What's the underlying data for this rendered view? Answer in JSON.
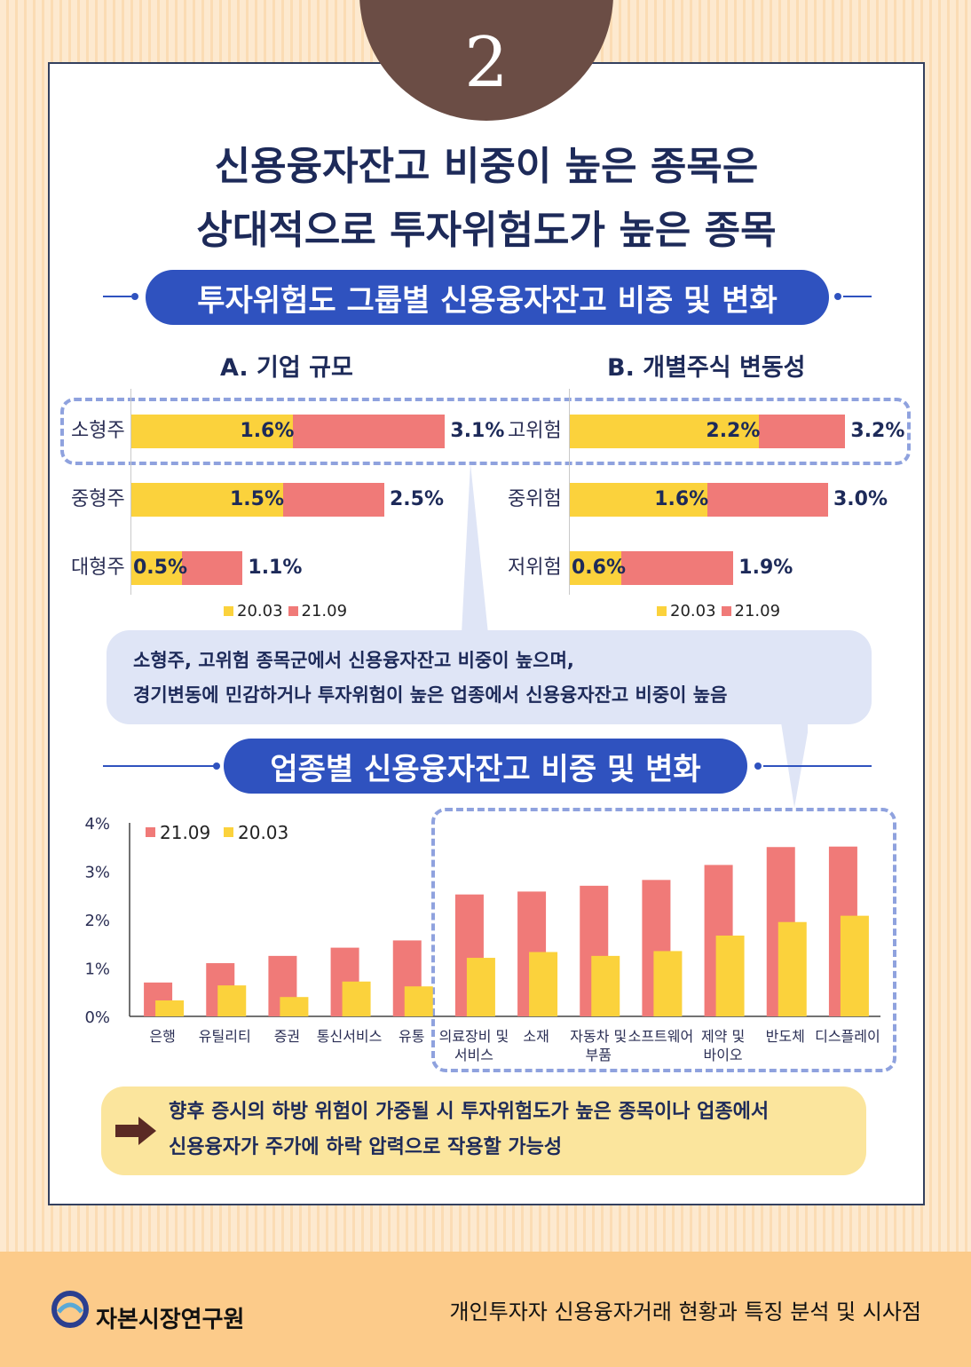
{
  "badge": {
    "number": "2"
  },
  "title": {
    "line1": "신용융자잔고 비중이 높은 종목은",
    "line2": "상대적으로 투자위험도가 높은 종목"
  },
  "section1": {
    "heading": "투자위험도 그룹별 신용융자잔고 비중 및 변화"
  },
  "chart_data": [
    {
      "type": "bar",
      "orientation": "horizontal",
      "title": "A. 기업 규모",
      "categories": [
        "소형주",
        "중형주",
        "대형주"
      ],
      "series": [
        {
          "name": "20.03",
          "values": [
            1.6,
            1.5,
            0.5
          ],
          "labels": [
            "1.6%",
            "1.5%",
            "0.5%"
          ],
          "color": "#fbd23c"
        },
        {
          "name": "21.09",
          "values": [
            3.1,
            2.5,
            1.1
          ],
          "labels": [
            "3.1%",
            "2.5%",
            "1.1%"
          ],
          "color": "#f07a78"
        }
      ],
      "legend": "bottom"
    },
    {
      "type": "bar",
      "orientation": "horizontal",
      "title": "B. 개별주식 변동성",
      "categories": [
        "고위험",
        "중위험",
        "저위험"
      ],
      "series": [
        {
          "name": "20.03",
          "values": [
            2.2,
            1.6,
            0.6
          ],
          "labels": [
            "2.2%",
            "1.6%",
            "0.6%"
          ],
          "color": "#fbd23c"
        },
        {
          "name": "21.09",
          "values": [
            3.2,
            3.0,
            1.9
          ],
          "labels": [
            "3.2%",
            "3.0%",
            "1.9%"
          ],
          "color": "#f07a78"
        }
      ],
      "legend": "bottom"
    },
    {
      "type": "bar",
      "orientation": "vertical",
      "categories": [
        "은행",
        "유틸리티",
        "증권",
        "통신서비스",
        "유통",
        "의료장비 및\n서비스",
        "소재",
        "자동차 및\n부품",
        "소프트웨어",
        "제약 및\n바이오",
        "반도체",
        "디스플레이"
      ],
      "yticks": [
        "0%",
        "1%",
        "2%",
        "3%",
        "4%"
      ],
      "ylim": [
        0,
        4
      ],
      "series": [
        {
          "name": "21.09",
          "values": [
            0.7,
            1.1,
            1.25,
            1.42,
            1.57,
            2.52,
            2.58,
            2.7,
            2.82,
            3.13,
            3.5,
            3.51
          ],
          "color": "#f07a78"
        },
        {
          "name": "20.03",
          "values": [
            0.33,
            0.64,
            0.4,
            0.72,
            0.62,
            1.21,
            1.33,
            1.25,
            1.35,
            1.67,
            1.95,
            2.08
          ],
          "color": "#fbd23c"
        }
      ],
      "legend": "top-left",
      "grid": false
    }
  ],
  "bubble": {
    "line1": "소형주, 고위험 종목군에서 신용융자잔고 비중이 높으며,",
    "line2": "경기변동에 민감하거나 투자위험이 높은 업종에서 신용융자잔고 비중이 높음"
  },
  "section2": {
    "heading": "업종별 신용융자잔고 비중 및 변화"
  },
  "note": {
    "line1": "향후 증시의 하방 위험이 가중될 시 투자위험도가 높은 종목이나 업종에서",
    "line2": "신용융자가 주가에 하락 압력으로 작용할 가능성"
  },
  "footer": {
    "org": "자본시장연구원",
    "report_title": "개인투자자 신용융자거래 현황과 특징 분석 및 시사점"
  }
}
